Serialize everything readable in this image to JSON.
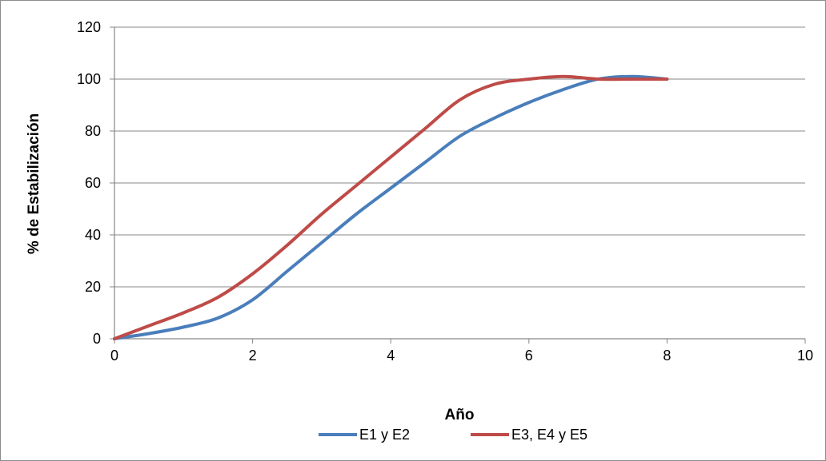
{
  "chart_data": {
    "type": "line",
    "title": "",
    "xlabel": "Año",
    "ylabel": "% de Estabilización",
    "xlim": [
      0,
      10
    ],
    "ylim": [
      0,
      120
    ],
    "x_ticks": [
      0,
      2,
      4,
      6,
      8,
      10
    ],
    "y_ticks": [
      0,
      20,
      40,
      60,
      80,
      100,
      120
    ],
    "grid": "horizontal",
    "legend_position": "bottom",
    "series": [
      {
        "name": "E1 y E2",
        "color": "#4a7ebb",
        "x": [
          0,
          0.5,
          1,
          1.5,
          2,
          2.5,
          3,
          3.5,
          4,
          4.5,
          5,
          5.5,
          6,
          6.5,
          7,
          7.5,
          8
        ],
        "y": [
          0,
          2,
          4.5,
          8,
          15,
          26,
          37,
          48,
          58,
          68,
          78,
          85,
          91,
          96,
          100,
          101,
          100
        ]
      },
      {
        "name": "E3, E4 y E5",
        "color": "#be4b48",
        "x": [
          0,
          0.5,
          1,
          1.5,
          2,
          2.5,
          3,
          3.5,
          4,
          4.5,
          5,
          5.5,
          6,
          6.5,
          7,
          7.5,
          8
        ],
        "y": [
          0,
          5,
          10,
          16,
          25,
          36,
          48,
          59,
          70,
          81,
          92,
          98,
          100,
          101,
          100,
          100,
          100
        ]
      }
    ]
  }
}
